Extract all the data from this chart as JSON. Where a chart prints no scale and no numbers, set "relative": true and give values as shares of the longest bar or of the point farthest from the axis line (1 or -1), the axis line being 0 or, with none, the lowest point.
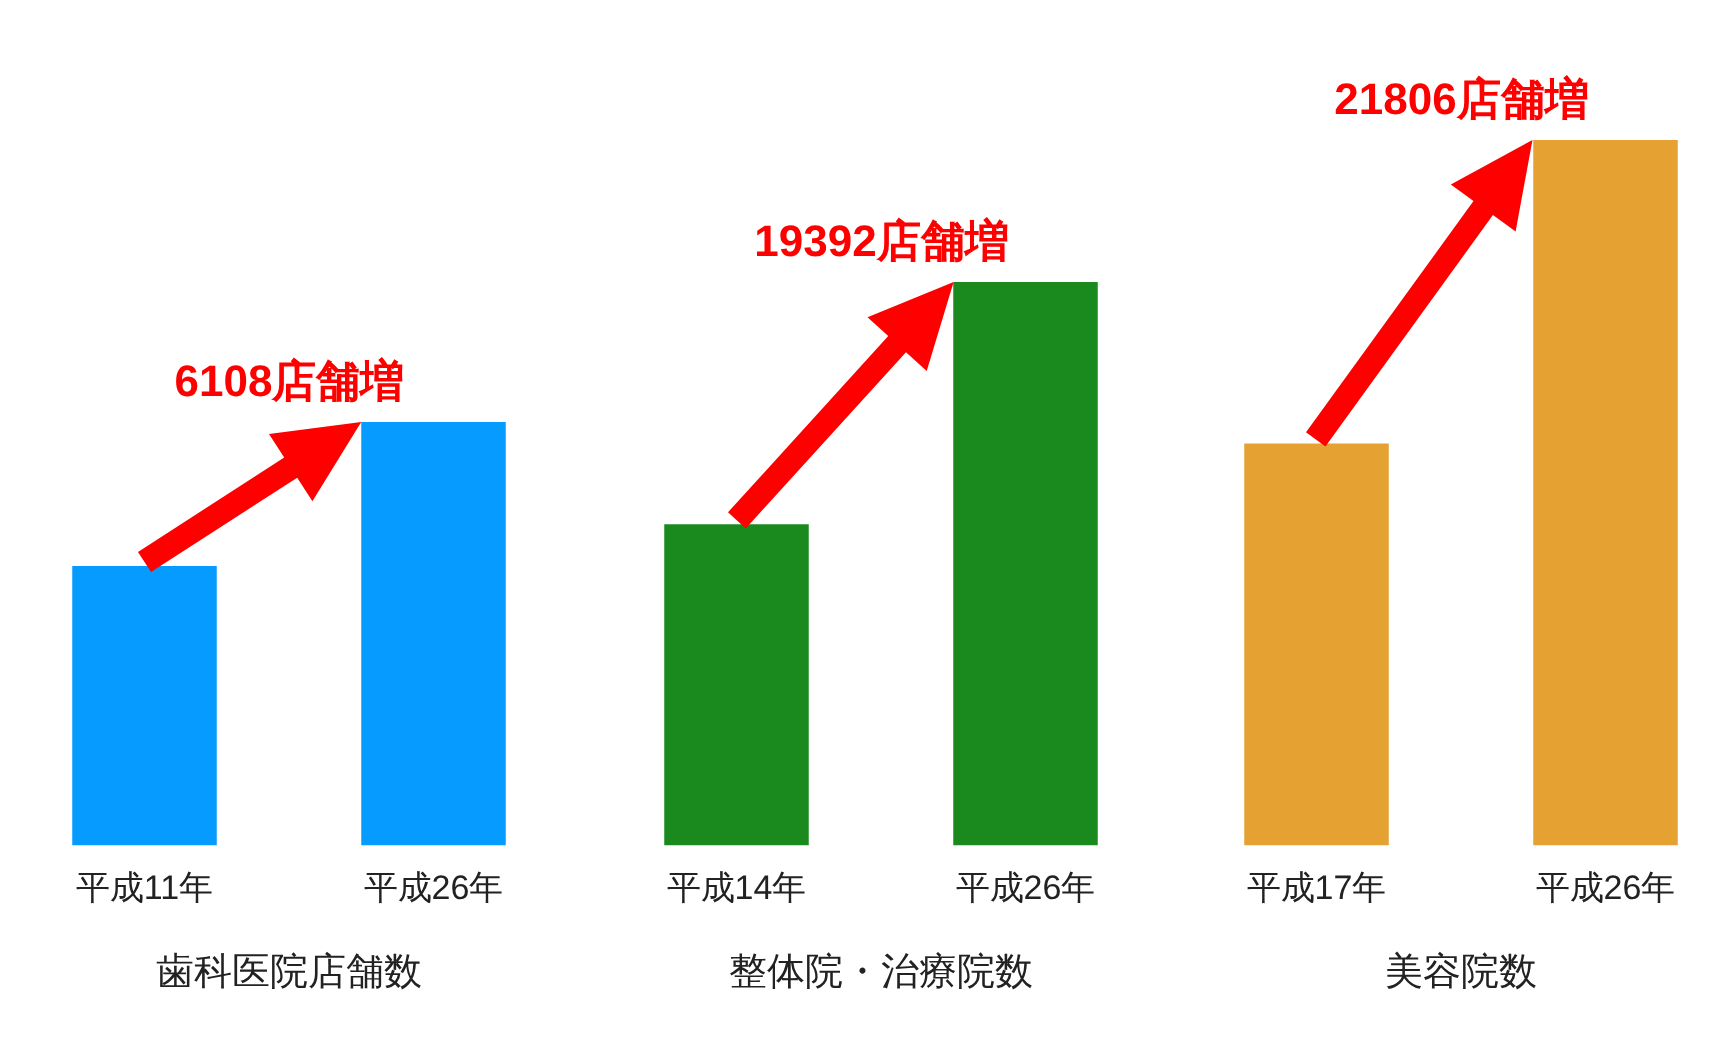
{
  "chart_data": [
    {
      "type": "bar",
      "relative": true,
      "categories": [
        "平成11年",
        "平成26年"
      ],
      "values": [
        0.66,
        1
      ],
      "color": "#059bff",
      "xlabel": "歯科医院店舗数",
      "annotations": [
        "6108店舗増"
      ]
    },
    {
      "type": "bar",
      "relative": true,
      "categories": [
        "平成14年",
        "平成26年"
      ],
      "values": [
        0.57,
        1
      ],
      "color": "#1a8a1e",
      "xlabel": "整体院・治療院数",
      "annotations": [
        "19392店舗増"
      ]
    },
    {
      "type": "bar",
      "relative": true,
      "categories": [
        "平成17年",
        "平成26年"
      ],
      "values": [
        0.57,
        1
      ],
      "color": "#e5a232",
      "xlabel": "美容院数",
      "annotations": [
        "21806店舗増"
      ]
    }
  ]
}
